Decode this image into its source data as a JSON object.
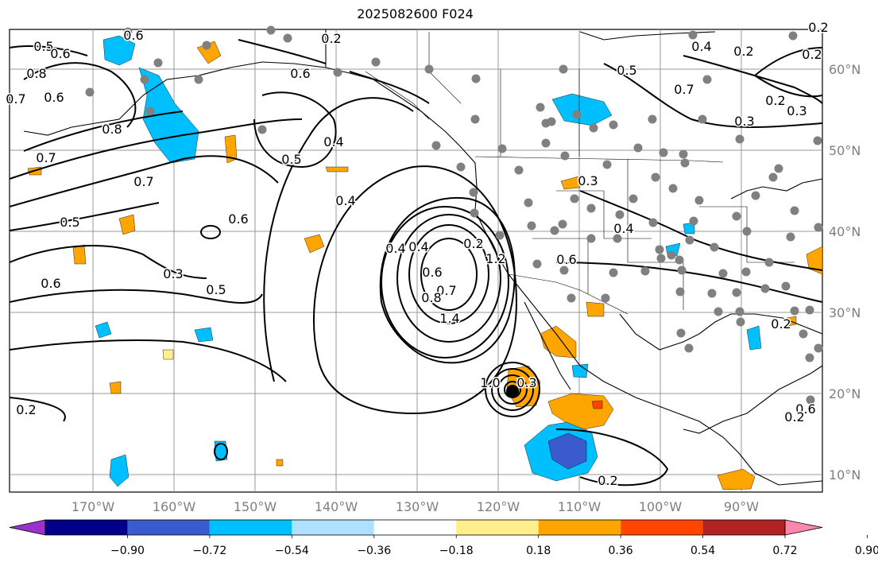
{
  "title": "2025082600 F024",
  "map": {
    "lon_labels": [
      "170°W",
      "160°W",
      "150°W",
      "140°W",
      "130°W",
      "120°W",
      "110°W",
      "100°W",
      "90°W"
    ],
    "lat_labels": [
      "60°N",
      "50°N",
      "40°N",
      "30°N",
      "20°N",
      "10°N"
    ],
    "contour_labels": [
      "0.2",
      "0.5",
      "0.6",
      "0.8",
      "0.7",
      "0.6",
      "0.8",
      "0.6",
      "0.7",
      "0.6",
      "0.5",
      "0.4",
      "0.4",
      "0.6",
      "0.5",
      "0.7",
      "0.3",
      "0.6",
      "0.5",
      "0.4",
      "0.4",
      "0.2",
      "0.6",
      "0.7",
      "0.8",
      "1.2",
      "1.4",
      "1.0",
      "0.3",
      "0.2",
      "0.6",
      "0.2",
      "0.3",
      "0.4",
      "0.6",
      "0.5",
      "0.7",
      "0.4",
      "0.2",
      "0.2",
      "0.3",
      "0.2",
      "0.3",
      "0.2",
      "0.2",
      "0.2"
    ],
    "colors": {
      "land_border": "#000000",
      "grid": "#808080",
      "dots": "#808080"
    }
  },
  "colorbar": {
    "ticks": [
      "−0.90",
      "−0.72",
      "−0.54",
      "−0.36",
      "−0.18",
      "0.18",
      "0.36",
      "0.54",
      "0.72",
      "0.90"
    ],
    "colors": [
      "#9932cc",
      "#00008b",
      "#3a5bcd",
      "#00bfff",
      "#aee1ff",
      "#ffffff",
      "#ffee8c",
      "#ffa500",
      "#ff4500",
      "#b22222",
      "#ff88aa"
    ]
  }
}
